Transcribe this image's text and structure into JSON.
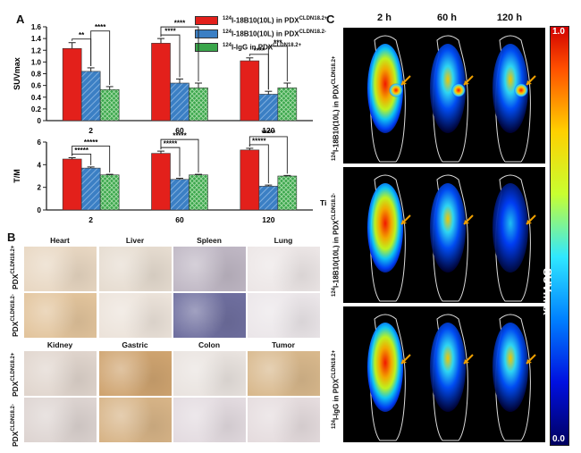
{
  "panels": {
    "a": "A",
    "b": "B",
    "c": "C"
  },
  "legend": [
    {
      "pre": "124",
      "text": "I-18B10(10L) in PDX",
      "sup": "CLDN18.2+",
      "color": "#e3201b"
    },
    {
      "pre": "124",
      "text": "I-18B10(10L) in PDX",
      "sup": "CLDN18.2-",
      "color": "#3b7fc4"
    },
    {
      "pre": "124",
      "text": "I-IgG in PDX",
      "sup": "CLDN18.2+",
      "color": "#3aa64b"
    }
  ],
  "chart_data": [
    {
      "type": "bar",
      "ylabel": "SUVmax",
      "xlabel": "",
      "categories": [
        "2",
        "60",
        "120"
      ],
      "ylim": [
        0,
        1.6
      ],
      "yticks": [
        "0",
        "0.2",
        "0.4",
        "0.6",
        "0.8",
        "1.0",
        "1.2",
        "1.4",
        "1.6"
      ],
      "series": [
        {
          "name": "124I-18B10(10L) in PDX CLDN18.2+",
          "values": [
            1.23,
            1.32,
            1.02
          ],
          "errors": [
            0.1,
            0.08,
            0.05
          ]
        },
        {
          "name": "124I-18B10(10L) in PDX CLDN18.2-",
          "values": [
            0.84,
            0.64,
            0.45
          ],
          "errors": [
            0.06,
            0.07,
            0.05
          ]
        },
        {
          "name": "124I-IgG in PDX CLDN18.2+",
          "values": [
            0.53,
            0.56,
            0.56
          ],
          "errors": [
            0.05,
            0.08,
            0.08
          ]
        }
      ],
      "significance": [
        {
          "cat": 0,
          "pair": [
            0,
            1
          ],
          "label": "**"
        },
        {
          "cat": 0,
          "pair": [
            1,
            2
          ],
          "label": "****"
        },
        {
          "cat": 1,
          "pair": [
            0,
            1
          ],
          "label": "****"
        },
        {
          "cat": 1,
          "pair": [
            0,
            2
          ],
          "label": "****"
        },
        {
          "cat": 2,
          "pair": [
            0,
            1
          ],
          "label": "****"
        },
        {
          "cat": 2,
          "pair": [
            1,
            2
          ],
          "label": "***"
        }
      ]
    },
    {
      "type": "bar",
      "ylabel": "T/M",
      "xlabel": "Time (h)",
      "categories": [
        "2",
        "60",
        "120"
      ],
      "ylim": [
        0,
        6
      ],
      "yticks": [
        "0",
        "2",
        "4",
        "6"
      ],
      "series": [
        {
          "name": "124I-18B10(10L) in PDX CLDN18.2+",
          "values": [
            4.5,
            5.0,
            5.3
          ],
          "errors": [
            0.12,
            0.2,
            0.15
          ]
        },
        {
          "name": "124I-18B10(10L) in PDX CLDN18.2-",
          "values": [
            3.7,
            2.7,
            2.1
          ],
          "errors": [
            0.1,
            0.1,
            0.1
          ]
        },
        {
          "name": "124I-IgG in PDX CLDN18.2+",
          "values": [
            3.1,
            3.1,
            3.0
          ],
          "errors": [
            0.05,
            0.05,
            0.05
          ]
        }
      ],
      "significance": [
        {
          "cat": 0,
          "pair": [
            0,
            1
          ],
          "label": "*****"
        },
        {
          "cat": 0,
          "pair": [
            0,
            2
          ],
          "label": "*****"
        },
        {
          "cat": 1,
          "pair": [
            0,
            1
          ],
          "label": "*****"
        },
        {
          "cat": 1,
          "pair": [
            0,
            2
          ],
          "label": "*****"
        },
        {
          "cat": 2,
          "pair": [
            0,
            1
          ],
          "label": "*****"
        },
        {
          "cat": 2,
          "pair": [
            0,
            2
          ],
          "label": "*****"
        }
      ]
    }
  ],
  "histology": {
    "top_tissues": [
      "Heart",
      "Liver",
      "Spleen",
      "Lung"
    ],
    "bottom_tissues": [
      "Kidney",
      "Gastric",
      "Colon",
      "Tumor"
    ],
    "row_labels": [
      {
        "text": "PDX",
        "sup": "CLDN18.2+"
      },
      {
        "text": "PDX",
        "sup": "CLDN18.2-"
      }
    ],
    "tile_colors": [
      [
        "#e8d7c2",
        "#e6dcd0",
        "#bfb7c4",
        "#ece6e6"
      ],
      [
        "#e2c49c",
        "#ece3da",
        "#6f6f9f",
        "#ebe6e9"
      ],
      [
        "#e0d5cd",
        "#cfa470",
        "#e9e3df",
        "#d8b88c"
      ],
      [
        "#ddd4d1",
        "#d7b487",
        "#e3dbe0",
        "#e5dcde"
      ]
    ]
  },
  "pet": {
    "columns": [
      "2 h",
      "60 h",
      "120 h"
    ],
    "rows": [
      {
        "pre": "124",
        "text": "I-18B10(10L) in PDX",
        "sup": "CLDN18.2+"
      },
      {
        "pre": "124",
        "text": "I-18B10(10L) in PDX",
        "sup": "CLDN18.2-"
      },
      {
        "pre": "124",
        "text": "I-IgG in PDX",
        "sup": "CLDN18.2+"
      }
    ],
    "colorbar": {
      "max": "1.0",
      "min": "0.0",
      "label": "SUVmax"
    }
  }
}
